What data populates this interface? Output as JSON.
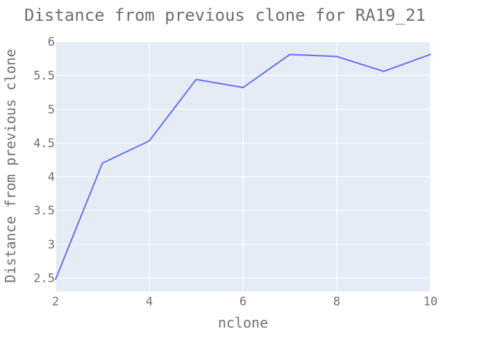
{
  "chart_data": {
    "type": "line",
    "title": "Distance from previous clone for RA19_21",
    "xlabel": "nclone",
    "ylabel": "Distance from previous clone",
    "x": [
      2,
      3,
      4,
      5,
      6,
      7,
      8,
      9,
      10
    ],
    "series": [
      {
        "values": [
          2.48,
          4.2,
          4.53,
          5.44,
          5.32,
          5.81,
          5.78,
          5.56,
          5.81
        ]
      }
    ],
    "xlim": [
      2,
      10
    ],
    "ylim": [
      2.3,
      6.0
    ],
    "x_ticks": [
      2,
      4,
      6,
      8,
      10
    ],
    "y_ticks": [
      2.5,
      3,
      3.5,
      4,
      4.5,
      5,
      5.5,
      6
    ],
    "x_tick_labels": [
      "2",
      "4",
      "6",
      "8",
      "10"
    ],
    "y_tick_labels": [
      "2.5",
      "3",
      "3.5",
      "4",
      "4.5",
      "5",
      "5.5",
      "6"
    ],
    "grid": true,
    "colors": {
      "line": "#636efa",
      "plot_background": "#e5ecf6",
      "grid": "#ffffff",
      "text": "#6f6f6f"
    }
  }
}
